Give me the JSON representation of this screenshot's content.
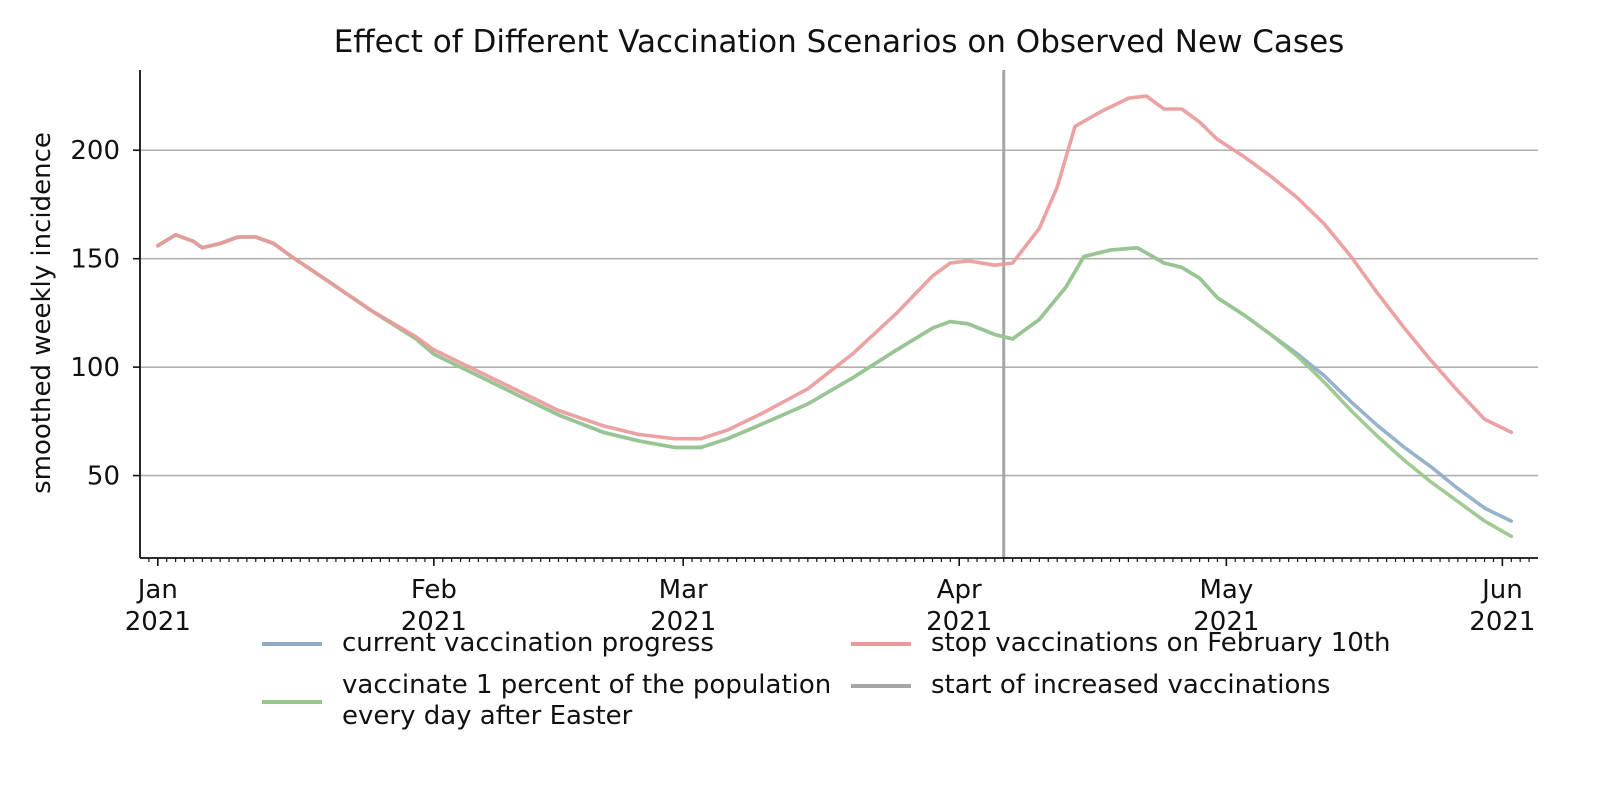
{
  "chart_data": {
    "type": "line",
    "title": "Effect of Different Vaccination Scenarios on Observed New Cases",
    "xlabel": "",
    "ylabel": "smoothed weekly incidence",
    "x_range": [
      "2020-12-30",
      "2021-06-05"
    ],
    "ylim": [
      12,
      237
    ],
    "yticks": [
      50,
      100,
      150,
      200
    ],
    "grid": "horizontal",
    "x_ticks": [
      {
        "date": "2021-01-01",
        "line1": "Jan",
        "line2": "2021"
      },
      {
        "date": "2021-02-01",
        "line1": "Feb",
        "line2": "2021"
      },
      {
        "date": "2021-03-01",
        "line1": "Mar",
        "line2": "2021"
      },
      {
        "date": "2021-04-01",
        "line1": "Apr",
        "line2": "2021"
      },
      {
        "date": "2021-05-01",
        "line1": "May",
        "line2": "2021"
      },
      {
        "date": "2021-06-01",
        "line1": "Jun",
        "line2": "2021"
      }
    ],
    "vline": {
      "date": "2021-04-06",
      "label": "start of increased vaccinations",
      "color": "#a6a6a6"
    },
    "series": [
      {
        "name": "current vaccination progress",
        "color": "#8eabc8",
        "points": [
          [
            "2021-01-01",
            156
          ],
          [
            "2021-01-03",
            161
          ],
          [
            "2021-01-05",
            158
          ],
          [
            "2021-01-06",
            155
          ],
          [
            "2021-01-08",
            157
          ],
          [
            "2021-01-10",
            160
          ],
          [
            "2021-01-12",
            160
          ],
          [
            "2021-01-14",
            157
          ],
          [
            "2021-01-16",
            151
          ],
          [
            "2021-01-20",
            140
          ],
          [
            "2021-01-25",
            126
          ],
          [
            "2021-01-30",
            113
          ],
          [
            "2021-02-01",
            106
          ],
          [
            "2021-02-05",
            98
          ],
          [
            "2021-02-10",
            88
          ],
          [
            "2021-02-15",
            78
          ],
          [
            "2021-02-20",
            70
          ],
          [
            "2021-02-24",
            66
          ],
          [
            "2021-02-28",
            63
          ],
          [
            "2021-03-03",
            63
          ],
          [
            "2021-03-06",
            67
          ],
          [
            "2021-03-10",
            74
          ],
          [
            "2021-03-15",
            83
          ],
          [
            "2021-03-20",
            95
          ],
          [
            "2021-03-25",
            108
          ],
          [
            "2021-03-29",
            118
          ],
          [
            "2021-03-31",
            121
          ],
          [
            "2021-04-02",
            120
          ],
          [
            "2021-04-05",
            115
          ],
          [
            "2021-04-07",
            113
          ],
          [
            "2021-04-10",
            122
          ],
          [
            "2021-04-13",
            137
          ],
          [
            "2021-04-15",
            151
          ],
          [
            "2021-04-18",
            154
          ],
          [
            "2021-04-21",
            155
          ],
          [
            "2021-04-24",
            148
          ],
          [
            "2021-04-26",
            146
          ],
          [
            "2021-04-28",
            141
          ],
          [
            "2021-04-30",
            132
          ],
          [
            "2021-05-03",
            124
          ],
          [
            "2021-05-06",
            115
          ],
          [
            "2021-05-09",
            106
          ],
          [
            "2021-05-12",
            96
          ],
          [
            "2021-05-15",
            84
          ],
          [
            "2021-05-18",
            73
          ],
          [
            "2021-05-21",
            63
          ],
          [
            "2021-05-24",
            54
          ],
          [
            "2021-05-27",
            44
          ],
          [
            "2021-05-30",
            35
          ],
          [
            "2021-06-02",
            29
          ]
        ]
      },
      {
        "name": "vaccinate 1 percent of the population every day after Easter",
        "color": "#98c78c",
        "points": [
          [
            "2021-01-01",
            156
          ],
          [
            "2021-01-03",
            161
          ],
          [
            "2021-01-05",
            158
          ],
          [
            "2021-01-06",
            155
          ],
          [
            "2021-01-08",
            157
          ],
          [
            "2021-01-10",
            160
          ],
          [
            "2021-01-12",
            160
          ],
          [
            "2021-01-14",
            157
          ],
          [
            "2021-01-16",
            151
          ],
          [
            "2021-01-20",
            140
          ],
          [
            "2021-01-25",
            126
          ],
          [
            "2021-01-30",
            113
          ],
          [
            "2021-02-01",
            106
          ],
          [
            "2021-02-05",
            98
          ],
          [
            "2021-02-10",
            88
          ],
          [
            "2021-02-15",
            78
          ],
          [
            "2021-02-20",
            70
          ],
          [
            "2021-02-24",
            66
          ],
          [
            "2021-02-28",
            63
          ],
          [
            "2021-03-03",
            63
          ],
          [
            "2021-03-06",
            67
          ],
          [
            "2021-03-10",
            74
          ],
          [
            "2021-03-15",
            83
          ],
          [
            "2021-03-20",
            95
          ],
          [
            "2021-03-25",
            108
          ],
          [
            "2021-03-29",
            118
          ],
          [
            "2021-03-31",
            121
          ],
          [
            "2021-04-02",
            120
          ],
          [
            "2021-04-05",
            115
          ],
          [
            "2021-04-07",
            113
          ],
          [
            "2021-04-10",
            122
          ],
          [
            "2021-04-13",
            137
          ],
          [
            "2021-04-15",
            151
          ],
          [
            "2021-04-18",
            154
          ],
          [
            "2021-04-21",
            155
          ],
          [
            "2021-04-24",
            148
          ],
          [
            "2021-04-26",
            146
          ],
          [
            "2021-04-28",
            141
          ],
          [
            "2021-04-30",
            132
          ],
          [
            "2021-05-03",
            124
          ],
          [
            "2021-05-06",
            115
          ],
          [
            "2021-05-09",
            105
          ],
          [
            "2021-05-12",
            93
          ],
          [
            "2021-05-15",
            80
          ],
          [
            "2021-05-18",
            68
          ],
          [
            "2021-05-21",
            57
          ],
          [
            "2021-05-24",
            47
          ],
          [
            "2021-05-27",
            38
          ],
          [
            "2021-05-30",
            29
          ],
          [
            "2021-06-02",
            22
          ]
        ]
      },
      {
        "name": "stop vaccinations on February 10th",
        "color": "#ea9a9a",
        "points": [
          [
            "2021-01-01",
            156
          ],
          [
            "2021-01-03",
            161
          ],
          [
            "2021-01-05",
            158
          ],
          [
            "2021-01-06",
            155
          ],
          [
            "2021-01-08",
            157
          ],
          [
            "2021-01-10",
            160
          ],
          [
            "2021-01-12",
            160
          ],
          [
            "2021-01-14",
            157
          ],
          [
            "2021-01-16",
            151
          ],
          [
            "2021-01-20",
            140
          ],
          [
            "2021-01-25",
            126
          ],
          [
            "2021-01-30",
            114
          ],
          [
            "2021-02-01",
            108
          ],
          [
            "2021-02-05",
            100
          ],
          [
            "2021-02-10",
            90
          ],
          [
            "2021-02-15",
            80
          ],
          [
            "2021-02-20",
            73
          ],
          [
            "2021-02-24",
            69
          ],
          [
            "2021-02-28",
            67
          ],
          [
            "2021-03-03",
            67
          ],
          [
            "2021-03-06",
            71
          ],
          [
            "2021-03-10",
            79
          ],
          [
            "2021-03-15",
            90
          ],
          [
            "2021-03-20",
            106
          ],
          [
            "2021-03-25",
            125
          ],
          [
            "2021-03-29",
            142
          ],
          [
            "2021-03-31",
            148
          ],
          [
            "2021-04-02",
            149
          ],
          [
            "2021-04-05",
            147
          ],
          [
            "2021-04-07",
            148
          ],
          [
            "2021-04-10",
            164
          ],
          [
            "2021-04-12",
            183
          ],
          [
            "2021-04-14",
            211
          ],
          [
            "2021-04-17",
            218
          ],
          [
            "2021-04-20",
            224
          ],
          [
            "2021-04-22",
            225
          ],
          [
            "2021-04-24",
            219
          ],
          [
            "2021-04-26",
            219
          ],
          [
            "2021-04-28",
            213
          ],
          [
            "2021-04-30",
            205
          ],
          [
            "2021-05-03",
            197
          ],
          [
            "2021-05-06",
            188
          ],
          [
            "2021-05-09",
            178
          ],
          [
            "2021-05-12",
            166
          ],
          [
            "2021-05-15",
            151
          ],
          [
            "2021-05-18",
            134
          ],
          [
            "2021-05-21",
            118
          ],
          [
            "2021-05-24",
            103
          ],
          [
            "2021-05-27",
            89
          ],
          [
            "2021-05-30",
            76
          ],
          [
            "2021-06-02",
            70
          ]
        ]
      }
    ]
  }
}
